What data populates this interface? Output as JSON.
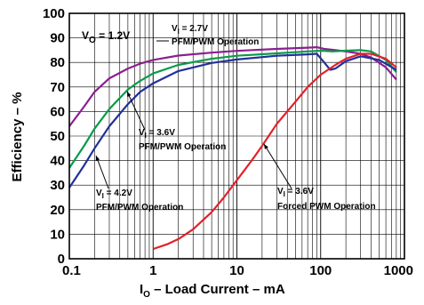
{
  "chart_data": {
    "type": "line",
    "xlabel_main": "I",
    "xlabel_sub": "O",
    "xlabel_rest": " – Load Current – mA",
    "ylabel": "Efficiency – %",
    "xscale": "log",
    "xlim": [
      0.1,
      1000
    ],
    "ylim": [
      0,
      100
    ],
    "grid": true,
    "x_ticks": [
      "0.1",
      "1",
      "10",
      "100",
      "1000"
    ],
    "y_ticks": [
      "0",
      "10",
      "20",
      "30",
      "40",
      "50",
      "60",
      "70",
      "80",
      "90",
      "100"
    ],
    "condition": {
      "main": "V",
      "sub": "O",
      "rest": " = 1.2V"
    },
    "series": [
      {
        "color": "#8B1F8F",
        "label_v": "V",
        "label_sub": "I",
        "label_val": " = 2.7V",
        "label_mode": "PFM/PWM Operation",
        "points": [
          [
            0.1,
            54
          ],
          [
            0.15,
            62
          ],
          [
            0.2,
            68
          ],
          [
            0.3,
            73.5
          ],
          [
            0.5,
            77.5
          ],
          [
            0.7,
            79.5
          ],
          [
            1,
            81
          ],
          [
            2,
            82.8
          ],
          [
            5,
            84
          ],
          [
            10,
            84.7
          ],
          [
            30,
            85.5
          ],
          [
            70,
            86
          ],
          [
            90,
            86.2
          ],
          [
            110,
            85.5
          ],
          [
            150,
            85
          ],
          [
            200,
            84.5
          ],
          [
            300,
            83.5
          ],
          [
            400,
            82
          ],
          [
            600,
            78
          ],
          [
            800,
            73
          ]
        ]
      },
      {
        "color": "#0A9A4A",
        "label_v": "V",
        "label_sub": "I",
        "label_val": " = 3.6V",
        "label_mode": "PFM/PWM Operation",
        "points": [
          [
            0.1,
            37
          ],
          [
            0.15,
            46
          ],
          [
            0.2,
            53
          ],
          [
            0.3,
            61
          ],
          [
            0.5,
            69
          ],
          [
            0.7,
            72.5
          ],
          [
            1,
            75.5
          ],
          [
            2,
            79
          ],
          [
            5,
            81.5
          ],
          [
            10,
            82.7
          ],
          [
            30,
            83.7
          ],
          [
            70,
            84.5
          ],
          [
            100,
            84.8
          ],
          [
            140,
            84.5
          ],
          [
            200,
            84.8
          ],
          [
            300,
            85
          ],
          [
            400,
            84.5
          ],
          [
            600,
            81
          ],
          [
            800,
            76
          ]
        ]
      },
      {
        "color": "#22309A",
        "label_v": "V",
        "label_sub": "I",
        "label_val": " = 4.2V",
        "label_mode": "PFM/PWM Operation",
        "points": [
          [
            0.1,
            29
          ],
          [
            0.15,
            38
          ],
          [
            0.2,
            45
          ],
          [
            0.3,
            54
          ],
          [
            0.5,
            63
          ],
          [
            0.7,
            68
          ],
          [
            1,
            71.5
          ],
          [
            2,
            76.5
          ],
          [
            5,
            79.8
          ],
          [
            10,
            81.2
          ],
          [
            30,
            82.7
          ],
          [
            70,
            83.3
          ],
          [
            90,
            83.5
          ],
          [
            110,
            80
          ],
          [
            130,
            77
          ],
          [
            150,
            77.5
          ],
          [
            200,
            80.5
          ],
          [
            300,
            82.5
          ],
          [
            500,
            81
          ],
          [
            800,
            77
          ]
        ]
      },
      {
        "color": "#E3202A",
        "label_v": "V",
        "label_sub": "I",
        "label_val": " = 3.6V",
        "label_mode": "Forced PWM Operation",
        "points": [
          [
            1,
            4
          ],
          [
            1.5,
            6
          ],
          [
            2,
            8
          ],
          [
            3,
            12
          ],
          [
            5,
            19
          ],
          [
            7,
            25
          ],
          [
            10,
            32
          ],
          [
            15,
            40
          ],
          [
            20,
            46
          ],
          [
            30,
            55
          ],
          [
            50,
            64
          ],
          [
            70,
            70
          ],
          [
            100,
            75
          ],
          [
            150,
            79
          ],
          [
            200,
            81.5
          ],
          [
            300,
            83.5
          ],
          [
            400,
            83.5
          ],
          [
            600,
            81.5
          ],
          [
            800,
            78
          ]
        ]
      }
    ]
  }
}
